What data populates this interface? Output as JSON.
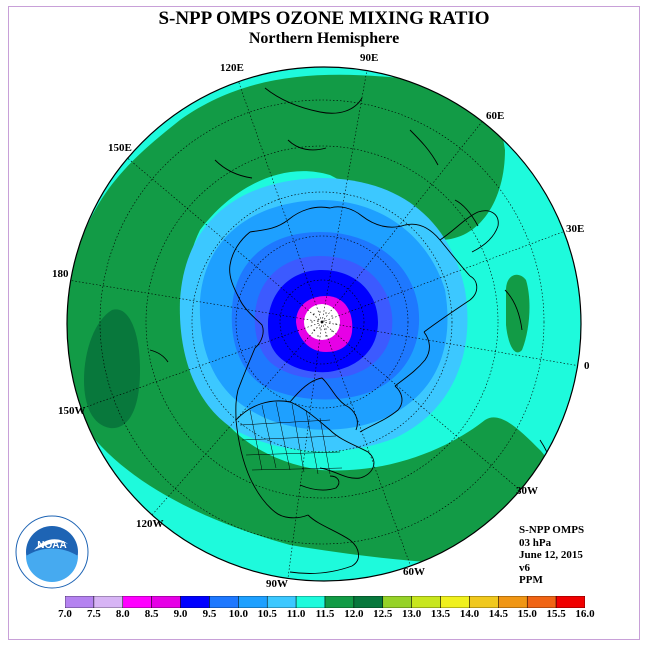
{
  "title": "S-NPP OMPS OZONE MIXING RATIO",
  "subtitle": "Northern Hemisphere",
  "meridian_labels": [
    "90E",
    "60E",
    "30E",
    "0",
    "30W",
    "60W",
    "90W",
    "120W",
    "150W",
    "180",
    "150E",
    "120E"
  ],
  "info": {
    "instrument": "S-NPP OMPS",
    "level": "03 hPa",
    "date": "June 12, 2015",
    "version": "v6",
    "units": "PPM"
  },
  "logo_text": "NOAA",
  "colorbar": {
    "ticks": [
      "7.0",
      "7.5",
      "8.0",
      "8.5",
      "9.0",
      "9.5",
      "10.0",
      "10.5",
      "11.0",
      "11.5",
      "12.0",
      "12.5",
      "13.0",
      "13.5",
      "14.0",
      "14.5",
      "15.0",
      "15.5",
      "16.0"
    ],
    "colors": [
      "#b482f0",
      "#d7b4f5",
      "#ff00ff",
      "#e600e6",
      "#0000ff",
      "#1e78ff",
      "#1ea0ff",
      "#3cc8ff",
      "#1efadc",
      "#129b46",
      "#08783c",
      "#96d228",
      "#c8e61e",
      "#f0f01e",
      "#f0c81e",
      "#f09614",
      "#f06414",
      "#f00000",
      "#8c5a3c"
    ]
  },
  "map_colors": {
    "ocean_edge": "#1efadc",
    "green": "#129b46",
    "dark_green": "#08783c",
    "light_blue": "#3cc8ff",
    "sky_blue": "#1ea0ff",
    "mid_blue": "#1e78ff",
    "blue": "#0000ff",
    "magenta": "#e600e6",
    "pole": "#ffffff"
  }
}
